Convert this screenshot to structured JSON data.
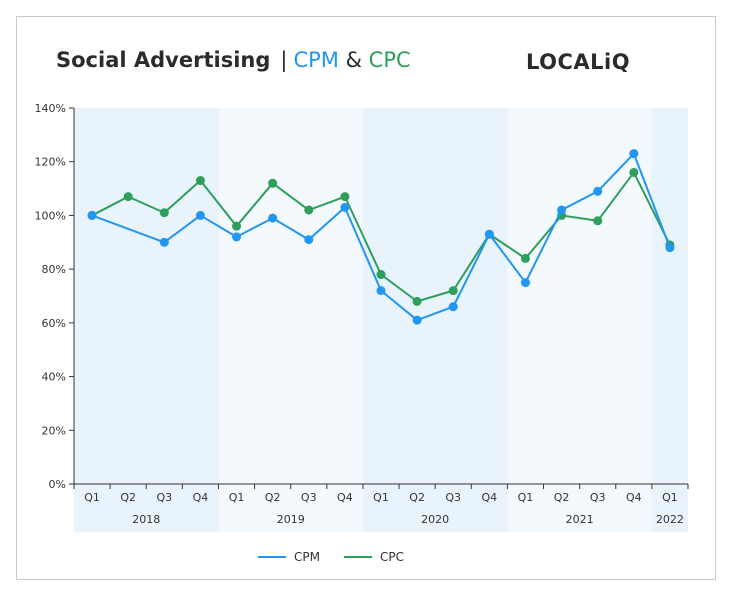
{
  "header": {
    "title": "Social Advertising",
    "separator": "|",
    "title_cpm": "CPM",
    "title_amp": "&",
    "title_cpc": "CPC",
    "brand": "LOCALiQ"
  },
  "colors": {
    "cpm": "#2196f3",
    "cpc": "#2e9e5b",
    "band_dark": "#e8f3fc",
    "band_light": "#f3f9fd"
  },
  "chart_data": {
    "type": "line",
    "categories": [
      "Q1",
      "Q2",
      "Q3",
      "Q4",
      "Q1",
      "Q2",
      "Q3",
      "Q4",
      "Q1",
      "Q2",
      "Q3",
      "Q4",
      "Q1",
      "Q2",
      "Q3",
      "Q4",
      "Q1"
    ],
    "year_groups": [
      {
        "label": "2018",
        "count": 4
      },
      {
        "label": "2019",
        "count": 4
      },
      {
        "label": "2020",
        "count": 4
      },
      {
        "label": "2021",
        "count": 4
      },
      {
        "label": "2022",
        "count": 1
      }
    ],
    "y_ticks": [
      "0%",
      "20%",
      "40%",
      "60%",
      "80%",
      "100%",
      "120%",
      "140%"
    ],
    "ylim": [
      0,
      140
    ],
    "series": [
      {
        "name": "CPM",
        "values": [
          100,
          null,
          90,
          100,
          92,
          99,
          91,
          103,
          72,
          61,
          66,
          93,
          75,
          102,
          109,
          123,
          88
        ]
      },
      {
        "name": "CPC",
        "values": [
          100,
          107,
          101,
          113,
          96,
          112,
          102,
          107,
          78,
          68,
          72,
          93,
          84,
          100,
          98,
          116,
          89
        ]
      }
    ],
    "legend_position": "bottom"
  }
}
